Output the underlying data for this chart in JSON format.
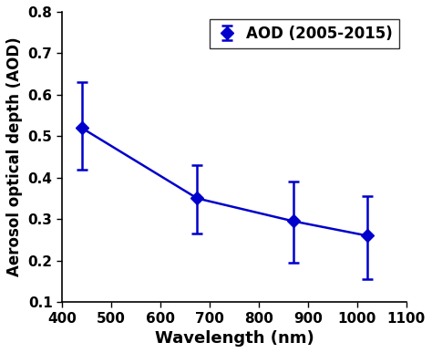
{
  "x": [
    440,
    675,
    870,
    1020
  ],
  "y": [
    0.52,
    0.35,
    0.295,
    0.26
  ],
  "yerr_upper": [
    0.11,
    0.08,
    0.095,
    0.095
  ],
  "yerr_lower": [
    0.1,
    0.085,
    0.1,
    0.105
  ],
  "line_color": "#0000CC",
  "marker": "D",
  "markersize": 7,
  "linewidth": 1.8,
  "xlabel": "Wavelength (nm)",
  "ylabel": "Aerosol optical depth (AOD)",
  "legend_label": "AOD (2005-2015)",
  "xlim": [
    400,
    1100
  ],
  "ylim": [
    0.1,
    0.8
  ],
  "xticks": [
    400,
    500,
    600,
    700,
    800,
    900,
    1000,
    1100
  ],
  "yticks": [
    0.1,
    0.2,
    0.3,
    0.4,
    0.5,
    0.6,
    0.7,
    0.8
  ],
  "xlabel_fontsize": 13,
  "ylabel_fontsize": 12,
  "tick_fontsize": 11,
  "legend_fontsize": 12
}
